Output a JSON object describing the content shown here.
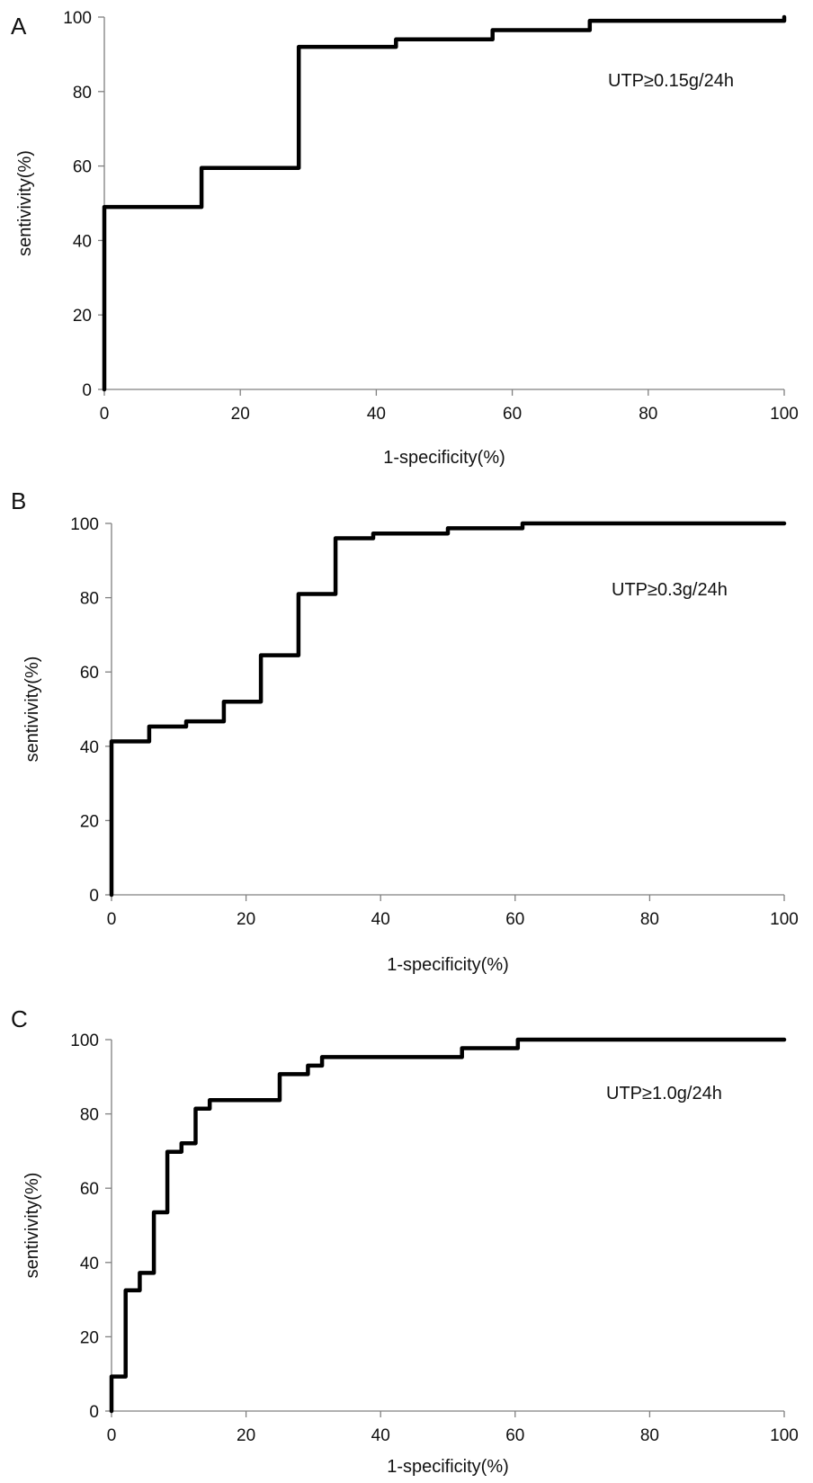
{
  "chart_data": [
    {
      "type": "line",
      "panel_label": "A",
      "annotation": "UTP≥0.15g/24h",
      "xlabel": "1-specificity(%)",
      "ylabel": "sentivivity(%)",
      "xlim": [
        0,
        100
      ],
      "ylim": [
        0,
        100
      ],
      "x_ticks": [
        "0",
        "20",
        "40",
        "60",
        "80",
        "100"
      ],
      "y_ticks": [
        "0",
        "20",
        "40",
        "60",
        "80",
        "100"
      ],
      "grid": false,
      "series": [
        {
          "points": [
            [
              0,
              0
            ],
            [
              0,
              49
            ],
            [
              14.3,
              49
            ],
            [
              14.3,
              59.5
            ],
            [
              28.6,
              59.5
            ],
            [
              28.6,
              92
            ],
            [
              42.9,
              92
            ],
            [
              42.9,
              94
            ],
            [
              57.1,
              94
            ],
            [
              57.1,
              96.5
            ],
            [
              71.4,
              96.5
            ],
            [
              71.4,
              99
            ],
            [
              100,
              99
            ],
            [
              100,
              100
            ]
          ]
        }
      ]
    },
    {
      "type": "line",
      "panel_label": "B",
      "annotation": "UTP≥0.3g/24h",
      "xlabel": "1-specificity(%)",
      "ylabel": "sentivivity(%)",
      "xlim": [
        0,
        100
      ],
      "ylim": [
        0,
        100
      ],
      "x_ticks": [
        "0",
        "20",
        "40",
        "60",
        "80",
        "100"
      ],
      "y_ticks": [
        "0",
        "20",
        "40",
        "60",
        "80",
        "100"
      ],
      "grid": false,
      "series": [
        {
          "points": [
            [
              0,
              0
            ],
            [
              0,
              41.3
            ],
            [
              5.6,
              41.3
            ],
            [
              5.6,
              45.3
            ],
            [
              11.1,
              45.3
            ],
            [
              11.1,
              46.7
            ],
            [
              16.7,
              46.7
            ],
            [
              16.7,
              52
            ],
            [
              22.2,
              52
            ],
            [
              22.2,
              64.5
            ],
            [
              27.8,
              64.5
            ],
            [
              27.8,
              81
            ],
            [
              33.3,
              81
            ],
            [
              33.3,
              96
            ],
            [
              38.9,
              96
            ],
            [
              38.9,
              97.3
            ],
            [
              50,
              97.3
            ],
            [
              50,
              98.7
            ],
            [
              61.1,
              98.7
            ],
            [
              61.1,
              100
            ],
            [
              100,
              100
            ]
          ]
        }
      ]
    },
    {
      "type": "line",
      "panel_label": "C",
      "annotation": "UTP≥1.0g/24h",
      "xlabel": "1-specificity(%)",
      "ylabel": "sentivivity(%)",
      "xlim": [
        0,
        100
      ],
      "ylim": [
        0,
        100
      ],
      "x_ticks": [
        "0",
        "20",
        "40",
        "60",
        "80",
        "100"
      ],
      "y_ticks": [
        "0",
        "20",
        "40",
        "60",
        "80",
        "100"
      ],
      "grid": false,
      "series": [
        {
          "points": [
            [
              0,
              0
            ],
            [
              0,
              9.3
            ],
            [
              2.1,
              9.3
            ],
            [
              2.1,
              32.5
            ],
            [
              4.2,
              32.5
            ],
            [
              4.2,
              37.2
            ],
            [
              6.3,
              37.2
            ],
            [
              6.3,
              53.5
            ],
            [
              8.3,
              53.5
            ],
            [
              8.3,
              69.8
            ],
            [
              10.4,
              69.8
            ],
            [
              10.4,
              72.1
            ],
            [
              12.5,
              72.1
            ],
            [
              12.5,
              81.4
            ],
            [
              14.6,
              81.4
            ],
            [
              14.6,
              83.7
            ],
            [
              25,
              83.7
            ],
            [
              25,
              90.7
            ],
            [
              29.2,
              90.7
            ],
            [
              29.2,
              93
            ],
            [
              31.3,
              93
            ],
            [
              31.3,
              95.3
            ],
            [
              52.1,
              95.3
            ],
            [
              52.1,
              97.7
            ],
            [
              60.4,
              97.7
            ],
            [
              60.4,
              100
            ],
            [
              100,
              100
            ]
          ]
        }
      ]
    }
  ]
}
